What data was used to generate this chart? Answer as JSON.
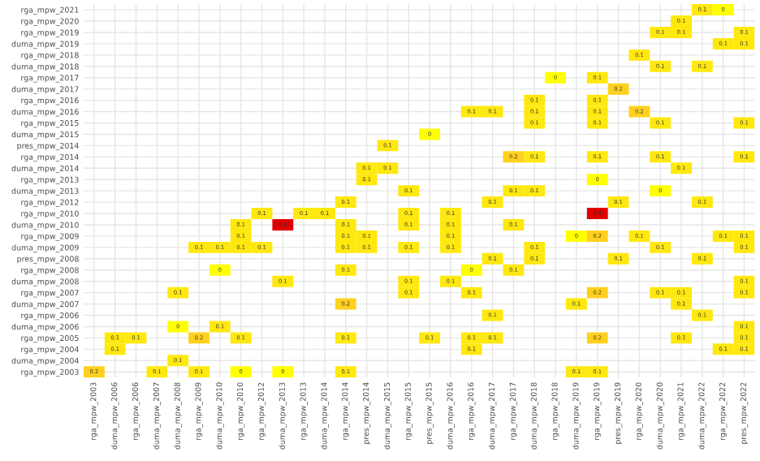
{
  "chart_data": {
    "type": "heatmap",
    "grid": true,
    "data_labels": true,
    "categories": [
      "rga_mpw_2003",
      "duma_mpw_2006",
      "rga_mpw_2006",
      "duma_mpw_2007",
      "duma_mpw_2008",
      "rga_mpw_2009",
      "duma_mpw_2010",
      "rga_mpw_2010",
      "rga_mpw_2012",
      "duma_mpw_2013",
      "rga_mpw_2013",
      "duma_mpw_2014",
      "rga_mpw_2014",
      "pres_mpw_2014",
      "duma_mpw_2015",
      "rga_mpw_2015",
      "pres_mpw_2015",
      "duma_mpw_2016",
      "rga_mpw_2016",
      "duma_mpw_2017",
      "rga_mpw_2017",
      "duma_mpw_2018",
      "rga_mpw_2018",
      "duma_mpw_2019",
      "rga_mpw_2019",
      "pres_mpw_2019",
      "rga_mpw_2020",
      "duma_mpw_2020",
      "rga_mpw_2021",
      "duma_mpw_2022",
      "rga_mpw_2022",
      "pres_mpw_2022"
    ],
    "y_categories": [
      "rga_mpw_2021",
      "rga_mpw_2020",
      "rga_mpw_2019",
      "duma_mpw_2019",
      "rga_mpw_2018",
      "duma_mpw_2018",
      "rga_mpw_2017",
      "duma_mpw_2017",
      "rga_mpw_2016",
      "duma_mpw_2016",
      "rga_mpw_2015",
      "duma_mpw_2015",
      "pres_mpw_2014",
      "rga_mpw_2014",
      "duma_mpw_2014",
      "rga_mpw_2013",
      "duma_mpw_2013",
      "rga_mpw_2012",
      "rga_mpw_2010",
      "duma_mpw_2010",
      "rga_mpw_2009",
      "duma_mpw_2009",
      "pres_mpw_2008",
      "rga_mpw_2008",
      "duma_mpw_2008",
      "rga_mpw_2007",
      "duma_mpw_2007",
      "rga_mpw_2006",
      "duma_mpw_2006",
      "rga_mpw_2005",
      "rga_mpw_2004",
      "duma_mpw_2004",
      "rga_mpw_2003"
    ],
    "cells": [
      [
        null,
        null,
        null,
        null,
        null,
        null,
        null,
        null,
        null,
        null,
        null,
        null,
        null,
        null,
        null,
        null,
        null,
        null,
        null,
        null,
        null,
        null,
        null,
        null,
        null,
        null,
        null,
        null,
        null,
        0.1,
        0,
        null
      ],
      [
        null,
        null,
        null,
        null,
        null,
        null,
        null,
        null,
        null,
        null,
        null,
        null,
        null,
        null,
        null,
        null,
        null,
        null,
        null,
        null,
        null,
        null,
        null,
        null,
        null,
        null,
        null,
        null,
        0.1,
        null,
        null,
        null
      ],
      [
        null,
        null,
        null,
        null,
        null,
        null,
        null,
        null,
        null,
        null,
        null,
        null,
        null,
        null,
        null,
        null,
        null,
        null,
        null,
        null,
        null,
        null,
        null,
        null,
        null,
        null,
        null,
        0.1,
        0.1,
        null,
        null,
        0.1
      ],
      [
        null,
        null,
        null,
        null,
        null,
        null,
        null,
        null,
        null,
        null,
        null,
        null,
        null,
        null,
        null,
        null,
        null,
        null,
        null,
        null,
        null,
        null,
        null,
        null,
        null,
        null,
        null,
        null,
        null,
        null,
        0.1,
        0.1
      ],
      [
        null,
        null,
        null,
        null,
        null,
        null,
        null,
        null,
        null,
        null,
        null,
        null,
        null,
        null,
        null,
        null,
        null,
        null,
        null,
        null,
        null,
        null,
        null,
        null,
        null,
        null,
        0.1,
        null,
        null,
        null,
        null,
        null
      ],
      [
        null,
        null,
        null,
        null,
        null,
        null,
        null,
        null,
        null,
        null,
        null,
        null,
        null,
        null,
        null,
        null,
        null,
        null,
        null,
        null,
        null,
        null,
        null,
        null,
        null,
        null,
        null,
        0.1,
        null,
        0.1,
        null,
        null
      ],
      [
        null,
        null,
        null,
        null,
        null,
        null,
        null,
        null,
        null,
        null,
        null,
        null,
        null,
        null,
        null,
        null,
        null,
        null,
        null,
        null,
        null,
        null,
        0,
        null,
        0.1,
        null,
        null,
        null,
        null,
        null,
        null,
        null
      ],
      [
        null,
        null,
        null,
        null,
        null,
        null,
        null,
        null,
        null,
        null,
        null,
        null,
        null,
        null,
        null,
        null,
        null,
        null,
        null,
        null,
        null,
        null,
        null,
        null,
        null,
        0.2,
        null,
        null,
        null,
        null,
        null,
        null
      ],
      [
        null,
        null,
        null,
        null,
        null,
        null,
        null,
        null,
        null,
        null,
        null,
        null,
        null,
        null,
        null,
        null,
        null,
        null,
        null,
        null,
        null,
        0.1,
        null,
        null,
        0.1,
        null,
        null,
        null,
        null,
        null,
        null,
        null
      ],
      [
        null,
        null,
        null,
        null,
        null,
        null,
        null,
        null,
        null,
        null,
        null,
        null,
        null,
        null,
        null,
        null,
        null,
        null,
        0.1,
        0.1,
        null,
        0.1,
        null,
        null,
        0.1,
        null,
        0.2,
        null,
        null,
        null,
        null,
        null
      ],
      [
        null,
        null,
        null,
        null,
        null,
        null,
        null,
        null,
        null,
        null,
        null,
        null,
        null,
        null,
        null,
        null,
        null,
        null,
        null,
        null,
        null,
        0.1,
        null,
        null,
        0.1,
        null,
        null,
        0.1,
        null,
        null,
        null,
        0.1
      ],
      [
        null,
        null,
        null,
        null,
        null,
        null,
        null,
        null,
        null,
        null,
        null,
        null,
        null,
        null,
        null,
        null,
        0,
        null,
        null,
        null,
        null,
        null,
        null,
        null,
        null,
        null,
        null,
        null,
        null,
        null,
        null,
        null
      ],
      [
        null,
        null,
        null,
        null,
        null,
        null,
        null,
        null,
        null,
        null,
        null,
        null,
        null,
        null,
        0.1,
        null,
        null,
        null,
        null,
        null,
        null,
        null,
        null,
        null,
        null,
        null,
        null,
        null,
        null,
        null,
        null,
        null
      ],
      [
        null,
        null,
        null,
        null,
        null,
        null,
        null,
        null,
        null,
        null,
        null,
        null,
        null,
        null,
        null,
        null,
        null,
        null,
        null,
        null,
        0.2,
        0.1,
        null,
        null,
        0.1,
        null,
        null,
        0.1,
        null,
        null,
        null,
        0.1
      ],
      [
        null,
        null,
        null,
        null,
        null,
        null,
        null,
        null,
        null,
        null,
        null,
        null,
        null,
        0.1,
        0.1,
        null,
        null,
        null,
        null,
        null,
        null,
        null,
        null,
        null,
        null,
        null,
        null,
        null,
        0.1,
        null,
        null,
        null
      ],
      [
        null,
        null,
        null,
        null,
        null,
        null,
        null,
        null,
        null,
        null,
        null,
        null,
        null,
        0.1,
        null,
        null,
        null,
        null,
        null,
        null,
        null,
        null,
        null,
        null,
        0,
        null,
        null,
        null,
        null,
        null,
        null,
        null
      ],
      [
        null,
        null,
        null,
        null,
        null,
        null,
        null,
        null,
        null,
        null,
        null,
        null,
        null,
        null,
        null,
        0.1,
        null,
        null,
        null,
        null,
        0.1,
        0.1,
        null,
        null,
        null,
        null,
        null,
        0,
        null,
        null,
        null,
        null
      ],
      [
        null,
        null,
        null,
        null,
        null,
        null,
        null,
        null,
        null,
        null,
        null,
        null,
        0.1,
        null,
        null,
        null,
        null,
        null,
        null,
        0.1,
        null,
        null,
        null,
        null,
        null,
        0.1,
        null,
        null,
        null,
        0.1,
        null,
        null
      ],
      [
        null,
        null,
        null,
        null,
        null,
        null,
        null,
        null,
        0.1,
        null,
        0.1,
        0.1,
        null,
        null,
        null,
        0.1,
        null,
        0.1,
        null,
        null,
        null,
        null,
        null,
        null,
        0.4,
        null,
        null,
        null,
        null,
        null,
        null,
        null
      ],
      [
        null,
        null,
        null,
        null,
        null,
        null,
        null,
        0.1,
        null,
        0.4,
        null,
        null,
        0.1,
        null,
        null,
        0.1,
        null,
        0.1,
        null,
        null,
        0.1,
        null,
        null,
        null,
        null,
        null,
        null,
        null,
        null,
        null,
        null,
        null
      ],
      [
        null,
        null,
        null,
        null,
        null,
        null,
        null,
        0.1,
        null,
        null,
        null,
        null,
        0.1,
        0.1,
        null,
        null,
        null,
        0.1,
        null,
        null,
        null,
        null,
        null,
        0,
        0.2,
        null,
        0.1,
        null,
        null,
        null,
        0.1,
        0.1
      ],
      [
        null,
        null,
        null,
        null,
        null,
        0.1,
        0.1,
        0.1,
        0.1,
        null,
        null,
        null,
        0.1,
        0.1,
        null,
        0.1,
        null,
        0.1,
        null,
        null,
        null,
        0.1,
        null,
        null,
        null,
        null,
        null,
        0.1,
        null,
        null,
        null,
        0.1
      ],
      [
        null,
        null,
        null,
        null,
        null,
        null,
        null,
        null,
        null,
        null,
        null,
        null,
        null,
        null,
        null,
        null,
        null,
        null,
        null,
        0.1,
        null,
        0.1,
        null,
        null,
        null,
        0.1,
        null,
        null,
        null,
        0.1,
        null,
        null
      ],
      [
        null,
        null,
        null,
        null,
        null,
        null,
        0,
        null,
        null,
        null,
        null,
        null,
        0.1,
        null,
        null,
        null,
        null,
        null,
        0,
        null,
        0.1,
        null,
        null,
        null,
        null,
        null,
        null,
        null,
        null,
        null,
        null,
        null
      ],
      [
        null,
        null,
        null,
        null,
        null,
        null,
        null,
        null,
        null,
        0.1,
        null,
        null,
        null,
        null,
        null,
        0.1,
        null,
        0.1,
        null,
        null,
        null,
        null,
        null,
        null,
        null,
        null,
        null,
        null,
        null,
        null,
        null,
        0.1
      ],
      [
        null,
        null,
        null,
        null,
        0.1,
        null,
        null,
        null,
        null,
        null,
        null,
        null,
        null,
        null,
        null,
        0.1,
        null,
        null,
        0.1,
        null,
        null,
        null,
        null,
        null,
        0.2,
        null,
        null,
        0.1,
        0.1,
        null,
        null,
        0.1
      ],
      [
        null,
        null,
        null,
        null,
        null,
        null,
        null,
        null,
        null,
        null,
        null,
        null,
        0.2,
        null,
        null,
        null,
        null,
        null,
        null,
        null,
        null,
        null,
        null,
        0.1,
        null,
        null,
        null,
        null,
        0.1,
        null,
        null,
        null
      ],
      [
        null,
        null,
        null,
        null,
        null,
        null,
        null,
        null,
        null,
        null,
        null,
        null,
        null,
        null,
        null,
        null,
        null,
        null,
        null,
        0.1,
        null,
        null,
        null,
        null,
        null,
        null,
        null,
        null,
        null,
        0.1,
        null,
        null
      ],
      [
        null,
        null,
        null,
        null,
        0,
        null,
        0.1,
        null,
        null,
        null,
        null,
        null,
        null,
        null,
        null,
        null,
        null,
        null,
        null,
        null,
        null,
        null,
        null,
        null,
        null,
        null,
        null,
        null,
        null,
        null,
        null,
        0.1
      ],
      [
        null,
        0.1,
        0.1,
        null,
        null,
        0.2,
        null,
        0.1,
        null,
        null,
        null,
        null,
        0.1,
        null,
        null,
        null,
        0.1,
        null,
        0.1,
        0.1,
        null,
        null,
        null,
        null,
        0.2,
        null,
        null,
        null,
        0.1,
        null,
        null,
        0.1
      ],
      [
        null,
        0.1,
        null,
        null,
        null,
        null,
        null,
        null,
        null,
        null,
        null,
        null,
        null,
        null,
        null,
        null,
        null,
        null,
        0.1,
        null,
        null,
        null,
        null,
        null,
        null,
        null,
        null,
        null,
        null,
        null,
        0.1,
        0.1
      ],
      [
        null,
        null,
        null,
        null,
        0.1,
        null,
        null,
        null,
        null,
        null,
        null,
        null,
        null,
        null,
        null,
        null,
        null,
        null,
        null,
        null,
        null,
        null,
        null,
        null,
        null,
        null,
        null,
        null,
        null,
        null,
        null,
        null
      ],
      [
        0.2,
        null,
        null,
        0.1,
        null,
        0.1,
        null,
        0,
        null,
        0,
        null,
        null,
        0.1,
        null,
        null,
        null,
        null,
        null,
        null,
        null,
        null,
        null,
        null,
        0.1,
        0.1,
        null,
        null,
        null,
        null,
        null,
        null,
        null
      ]
    ]
  }
}
